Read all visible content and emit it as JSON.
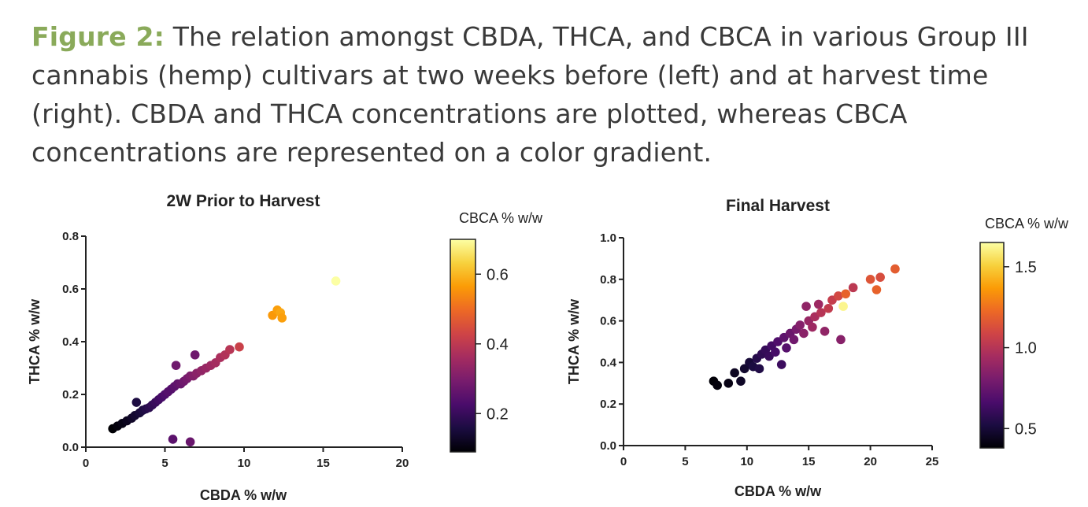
{
  "caption": {
    "label": "Figure 2:",
    "text": " The relation amongst CBDA, THCA, and CBCA in various Group III cannabis (hemp) cultivars at two weeks before (left) and at harvest time (right). CBDA and THCA concentrations are plotted, whereas CBCA concentrations are represented on a color gradient."
  },
  "colormap": {
    "name": "inferno",
    "stops": [
      "#000004",
      "#1b0c41",
      "#4a0c6b",
      "#781c6d",
      "#a52c60",
      "#cf4446",
      "#ed6925",
      "#fb9b06",
      "#f7d13d",
      "#fcffa4"
    ]
  },
  "chart_data": [
    {
      "type": "scatter",
      "title": "2W Prior to Harvest",
      "xlabel": "CBDA % w/w",
      "ylabel": "THCA % w/w",
      "xlim": [
        0,
        20
      ],
      "ylim": [
        0,
        0.8
      ],
      "xticks": [
        0,
        5,
        10,
        15,
        20
      ],
      "yticks": [
        0.0,
        0.2,
        0.4,
        0.6,
        0.8
      ],
      "xtick_labels": [
        "0",
        "5",
        "10",
        "15",
        "20"
      ],
      "ytick_labels": [
        "0.0",
        "0.2",
        "0.4",
        "0.6",
        "0.8"
      ],
      "colorbar": {
        "title": "CBCA % w/w",
        "range": [
          0.09,
          0.7
        ],
        "ticks": [
          0.2,
          0.4,
          0.6
        ],
        "tick_labels": [
          "0.2",
          "0.4",
          "0.6"
        ]
      },
      "points": [
        {
          "x": 1.7,
          "y": 0.07,
          "c": 0.09
        },
        {
          "x": 2.0,
          "y": 0.08,
          "c": 0.1
        },
        {
          "x": 2.3,
          "y": 0.09,
          "c": 0.11
        },
        {
          "x": 2.6,
          "y": 0.1,
          "c": 0.12
        },
        {
          "x": 2.9,
          "y": 0.11,
          "c": 0.13
        },
        {
          "x": 3.1,
          "y": 0.12,
          "c": 0.14
        },
        {
          "x": 3.2,
          "y": 0.17,
          "c": 0.16
        },
        {
          "x": 3.4,
          "y": 0.13,
          "c": 0.15
        },
        {
          "x": 3.6,
          "y": 0.14,
          "c": 0.16
        },
        {
          "x": 3.8,
          "y": 0.145,
          "c": 0.17
        },
        {
          "x": 4.0,
          "y": 0.15,
          "c": 0.18
        },
        {
          "x": 4.2,
          "y": 0.16,
          "c": 0.19
        },
        {
          "x": 4.4,
          "y": 0.17,
          "c": 0.2
        },
        {
          "x": 4.6,
          "y": 0.18,
          "c": 0.21
        },
        {
          "x": 4.8,
          "y": 0.19,
          "c": 0.22
        },
        {
          "x": 5.0,
          "y": 0.2,
          "c": 0.23
        },
        {
          "x": 5.2,
          "y": 0.21,
          "c": 0.24
        },
        {
          "x": 5.4,
          "y": 0.22,
          "c": 0.24
        },
        {
          "x": 5.5,
          "y": 0.03,
          "c": 0.25
        },
        {
          "x": 5.6,
          "y": 0.23,
          "c": 0.25
        },
        {
          "x": 5.7,
          "y": 0.31,
          "c": 0.28
        },
        {
          "x": 5.8,
          "y": 0.24,
          "c": 0.26
        },
        {
          "x": 6.0,
          "y": 0.24,
          "c": 0.27
        },
        {
          "x": 6.2,
          "y": 0.25,
          "c": 0.28
        },
        {
          "x": 6.4,
          "y": 0.26,
          "c": 0.29
        },
        {
          "x": 6.6,
          "y": 0.02,
          "c": 0.27
        },
        {
          "x": 6.6,
          "y": 0.27,
          "c": 0.3
        },
        {
          "x": 6.8,
          "y": 0.27,
          "c": 0.31
        },
        {
          "x": 6.9,
          "y": 0.35,
          "c": 0.28
        },
        {
          "x": 7.0,
          "y": 0.28,
          "c": 0.32
        },
        {
          "x": 7.3,
          "y": 0.29,
          "c": 0.33
        },
        {
          "x": 7.6,
          "y": 0.3,
          "c": 0.34
        },
        {
          "x": 7.9,
          "y": 0.31,
          "c": 0.35
        },
        {
          "x": 8.2,
          "y": 0.32,
          "c": 0.36
        },
        {
          "x": 8.5,
          "y": 0.34,
          "c": 0.37
        },
        {
          "x": 8.8,
          "y": 0.35,
          "c": 0.38
        },
        {
          "x": 9.1,
          "y": 0.37,
          "c": 0.39
        },
        {
          "x": 9.7,
          "y": 0.38,
          "c": 0.42
        },
        {
          "x": 11.8,
          "y": 0.5,
          "c": 0.56
        },
        {
          "x": 12.1,
          "y": 0.52,
          "c": 0.57
        },
        {
          "x": 12.3,
          "y": 0.51,
          "c": 0.58
        },
        {
          "x": 12.4,
          "y": 0.49,
          "c": 0.57
        },
        {
          "x": 15.8,
          "y": 0.63,
          "c": 0.7
        }
      ]
    },
    {
      "type": "scatter",
      "title": "Final Harvest",
      "xlabel": "CBDA % w/w",
      "ylabel": "THCA % w/w",
      "xlim": [
        0,
        25
      ],
      "ylim": [
        0,
        1.0
      ],
      "xticks": [
        0,
        5,
        10,
        15,
        20,
        25
      ],
      "yticks": [
        0.0,
        0.2,
        0.4,
        0.6,
        0.8,
        1.0
      ],
      "xtick_labels": [
        "0",
        "5",
        "10",
        "15",
        "20",
        "25"
      ],
      "ytick_labels": [
        "0.0",
        "0.2",
        "0.4",
        "0.6",
        "0.8",
        "1.0"
      ],
      "colorbar": {
        "title": "CBCA % w/w",
        "range": [
          0.38,
          1.65
        ],
        "ticks": [
          0.5,
          1.0,
          1.5
        ],
        "tick_labels": [
          "0.5",
          "1.0",
          "1.5"
        ]
      },
      "points": [
        {
          "x": 7.3,
          "y": 0.31,
          "c": 0.39
        },
        {
          "x": 7.6,
          "y": 0.29,
          "c": 0.4
        },
        {
          "x": 8.5,
          "y": 0.3,
          "c": 0.42
        },
        {
          "x": 9.0,
          "y": 0.35,
          "c": 0.45
        },
        {
          "x": 9.5,
          "y": 0.31,
          "c": 0.46
        },
        {
          "x": 9.8,
          "y": 0.37,
          "c": 0.48
        },
        {
          "x": 10.2,
          "y": 0.4,
          "c": 0.5
        },
        {
          "x": 10.5,
          "y": 0.38,
          "c": 0.52
        },
        {
          "x": 10.8,
          "y": 0.42,
          "c": 0.55
        },
        {
          "x": 11.0,
          "y": 0.37,
          "c": 0.54
        },
        {
          "x": 11.2,
          "y": 0.44,
          "c": 0.58
        },
        {
          "x": 11.5,
          "y": 0.46,
          "c": 0.6
        },
        {
          "x": 11.8,
          "y": 0.43,
          "c": 0.61
        },
        {
          "x": 12.0,
          "y": 0.48,
          "c": 0.64
        },
        {
          "x": 12.3,
          "y": 0.45,
          "c": 0.65
        },
        {
          "x": 12.5,
          "y": 0.5,
          "c": 0.68
        },
        {
          "x": 12.8,
          "y": 0.39,
          "c": 0.62
        },
        {
          "x": 13.0,
          "y": 0.52,
          "c": 0.72
        },
        {
          "x": 13.2,
          "y": 0.47,
          "c": 0.7
        },
        {
          "x": 13.5,
          "y": 0.54,
          "c": 0.76
        },
        {
          "x": 13.8,
          "y": 0.51,
          "c": 0.78
        },
        {
          "x": 14.0,
          "y": 0.56,
          "c": 0.8
        },
        {
          "x": 14.3,
          "y": 0.58,
          "c": 0.84
        },
        {
          "x": 14.6,
          "y": 0.54,
          "c": 0.86
        },
        {
          "x": 14.8,
          "y": 0.67,
          "c": 0.88
        },
        {
          "x": 15.0,
          "y": 0.6,
          "c": 0.9
        },
        {
          "x": 15.3,
          "y": 0.57,
          "c": 0.92
        },
        {
          "x": 15.5,
          "y": 0.62,
          "c": 0.96
        },
        {
          "x": 15.8,
          "y": 0.68,
          "c": 0.92
        },
        {
          "x": 16.0,
          "y": 0.64,
          "c": 1.0
        },
        {
          "x": 16.3,
          "y": 0.55,
          "c": 0.88
        },
        {
          "x": 16.6,
          "y": 0.66,
          "c": 1.04
        },
        {
          "x": 16.9,
          "y": 0.7,
          "c": 1.05
        },
        {
          "x": 17.4,
          "y": 0.72,
          "c": 1.1
        },
        {
          "x": 17.6,
          "y": 0.51,
          "c": 0.85
        },
        {
          "x": 17.8,
          "y": 0.67,
          "c": 1.62
        },
        {
          "x": 18.0,
          "y": 0.73,
          "c": 1.2
        },
        {
          "x": 18.6,
          "y": 0.76,
          "c": 1.02
        },
        {
          "x": 20.0,
          "y": 0.8,
          "c": 1.15
        },
        {
          "x": 20.5,
          "y": 0.75,
          "c": 1.2
        },
        {
          "x": 20.8,
          "y": 0.81,
          "c": 1.12
        },
        {
          "x": 22.0,
          "y": 0.85,
          "c": 1.18
        }
      ]
    }
  ]
}
